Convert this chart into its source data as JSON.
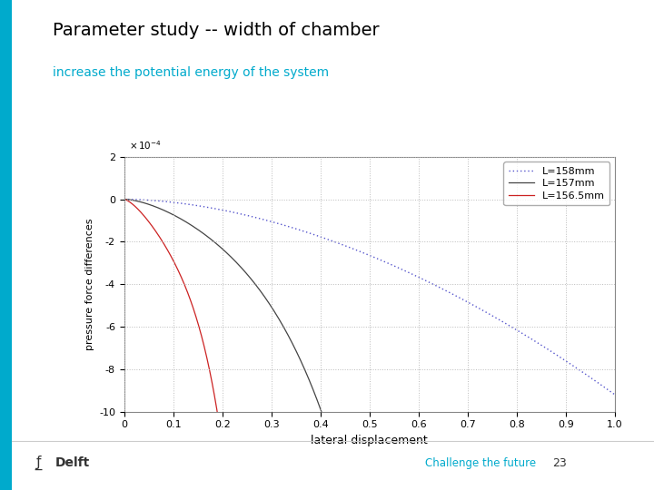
{
  "title": "Parameter study -- width of chamber",
  "subtitle": "increase the potential energy of the system",
  "title_color": "#000000",
  "subtitle_color": "#00aacc",
  "sidebar_color": "#00aacc",
  "xlabel": "lateral displacement",
  "ylabel": "pressure force differences",
  "xlim": [
    0,
    1
  ],
  "ylim_raw": [
    -10,
    2
  ],
  "ytick_scale": 0.0001,
  "legend_labels": [
    "L=158mm",
    "L=157mm",
    "L=156.5mm"
  ],
  "line_colors": [
    "#5555cc",
    "#444444",
    "#cc2222"
  ],
  "background_color": "#ffffff",
  "footer_text": "Challenge the future",
  "footer_number": "23",
  "grid_color": "#bbbbbb",
  "plot_bg": "#ffffff"
}
